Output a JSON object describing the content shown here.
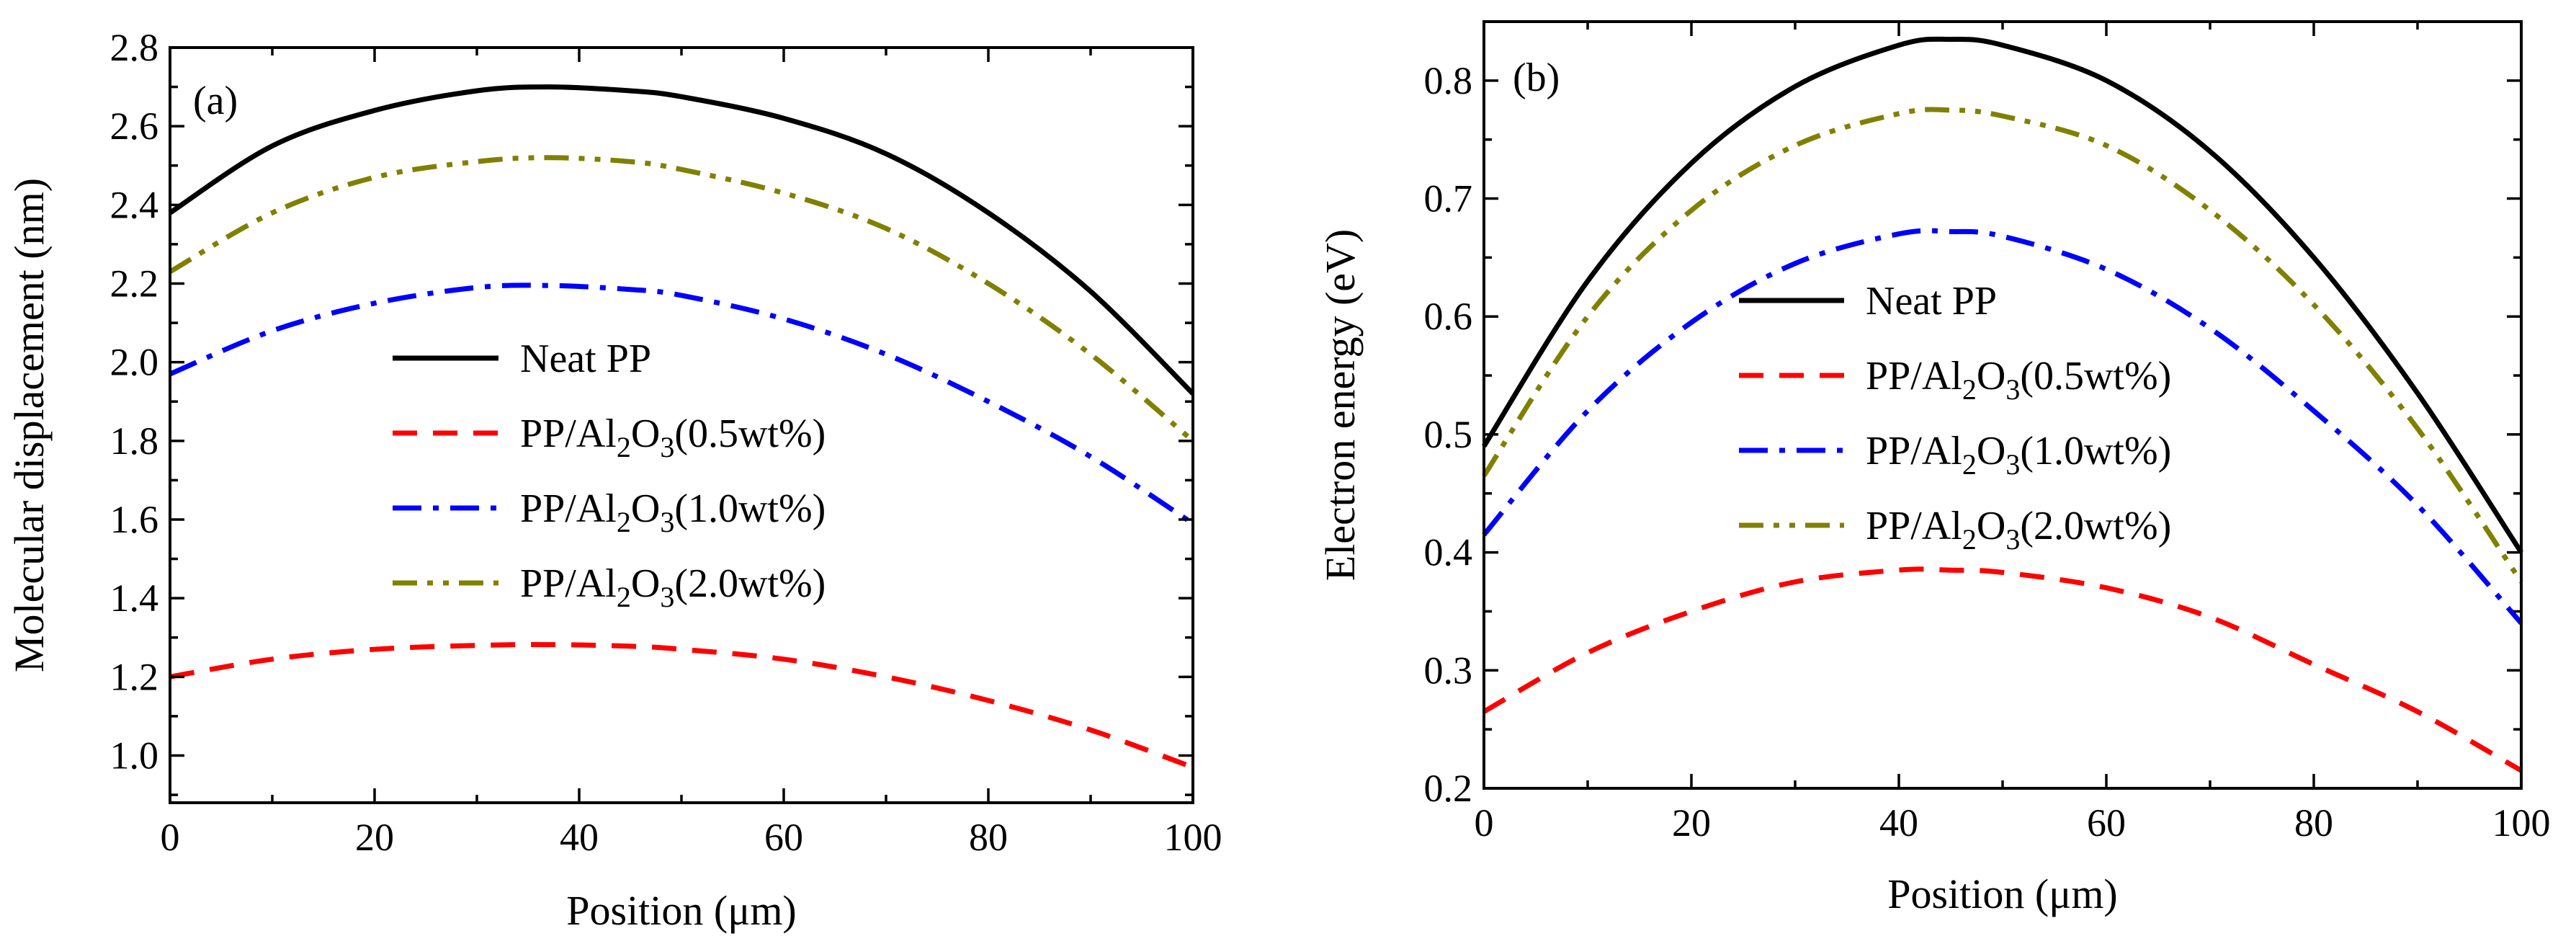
{
  "chart_data": [
    {
      "type": "line",
      "panel_label": "(a)",
      "xlabel": "Position (μm)",
      "ylabel": "Molecular displacement (nm)",
      "xlim": [
        0,
        100
      ],
      "ylim": [
        0.88,
        2.8
      ],
      "x_ticks": [
        0,
        20,
        40,
        60,
        80,
        100
      ],
      "y_ticks": [
        1.0,
        1.2,
        1.4,
        1.6,
        1.8,
        2.0,
        2.2,
        2.4,
        2.6,
        2.8
      ],
      "y_tick_labels": [
        "1.0",
        "1.2",
        "1.4",
        "1.6",
        "1.8",
        "2.0",
        "2.2",
        "2.4",
        "2.6",
        "2.8"
      ],
      "x_tick_labels": [
        "0",
        "20",
        "40",
        "60",
        "80",
        "100"
      ],
      "legend_placement": "center",
      "series": [
        {
          "name": "Neat PP",
          "label_main": "Neat PP",
          "label_parts": [],
          "color": "#000000",
          "style": "solid",
          "x": [
            0,
            10,
            20,
            30,
            37,
            45,
            50,
            60,
            70,
            80,
            90,
            100
          ],
          "values": [
            2.38,
            2.55,
            2.64,
            2.69,
            2.7,
            2.69,
            2.675,
            2.62,
            2.53,
            2.38,
            2.18,
            1.92
          ]
        },
        {
          "name": "PP/Al2O3(0.5wt%)",
          "label_main": "PP/Al",
          "label_parts": [
            "2",
            "O",
            "3",
            "(0.5wt%)"
          ],
          "color": "#ff0000",
          "style": "dashed",
          "x": [
            0,
            10,
            20,
            30,
            37,
            45,
            50,
            60,
            70,
            80,
            90,
            100
          ],
          "values": [
            1.2,
            1.245,
            1.27,
            1.28,
            1.282,
            1.278,
            1.27,
            1.245,
            1.2,
            1.14,
            1.065,
            0.97
          ]
        },
        {
          "name": "PP/Al2O3(1.0wt%)",
          "label_main": "PP/Al",
          "label_parts": [
            "2",
            "O",
            "3",
            "(1.0wt%)"
          ],
          "color": "#0000ff",
          "style": "dashdot",
          "x": [
            0,
            10,
            20,
            30,
            37,
            45,
            50,
            60,
            70,
            80,
            90,
            100
          ],
          "values": [
            1.97,
            2.08,
            2.15,
            2.19,
            2.195,
            2.185,
            2.17,
            2.11,
            2.02,
            1.9,
            1.76,
            1.59
          ]
        },
        {
          "name": "PP/Al2O3(2.0wt%)",
          "label_main": "PP/Al",
          "label_parts": [
            "2",
            "O",
            "3",
            "(2.0wt%)"
          ],
          "color": "#808000",
          "style": "dashdotdot",
          "x": [
            0,
            10,
            20,
            30,
            37,
            45,
            50,
            60,
            70,
            80,
            90,
            100
          ],
          "values": [
            2.23,
            2.38,
            2.47,
            2.51,
            2.52,
            2.51,
            2.49,
            2.43,
            2.34,
            2.2,
            2.02,
            1.8
          ]
        }
      ]
    },
    {
      "type": "line",
      "panel_label": "(b)",
      "xlabel": "Position (μm)",
      "ylabel": "Electron energy (eV)",
      "xlim": [
        0,
        100
      ],
      "ylim": [
        0.2,
        0.85
      ],
      "x_ticks": [
        0,
        20,
        40,
        60,
        80,
        100
      ],
      "y_ticks": [
        0.2,
        0.3,
        0.4,
        0.5,
        0.6,
        0.7,
        0.8
      ],
      "y_tick_labels": [
        "0.2",
        "0.3",
        "0.4",
        "0.5",
        "0.6",
        "0.7",
        "0.8"
      ],
      "x_tick_labels": [
        "0",
        "20",
        "40",
        "60",
        "80",
        "100"
      ],
      "legend_placement": "center",
      "series": [
        {
          "name": "Neat PP",
          "label_main": "Neat PP",
          "label_parts": [],
          "color": "#000000",
          "style": "solid",
          "x": [
            0,
            10,
            20,
            30,
            40,
            45,
            50,
            60,
            70,
            80,
            90,
            100
          ],
          "values": [
            0.49,
            0.63,
            0.73,
            0.795,
            0.83,
            0.835,
            0.83,
            0.8,
            0.74,
            0.65,
            0.535,
            0.4
          ]
        },
        {
          "name": "PP/Al2O3(0.5wt%)",
          "label_main": "PP/Al",
          "label_parts": [
            "2",
            "O",
            "3",
            "(0.5wt%)"
          ],
          "color": "#ff0000",
          "style": "dashed",
          "x": [
            0,
            10,
            20,
            30,
            40,
            45,
            50,
            60,
            70,
            80,
            90,
            100
          ],
          "values": [
            0.265,
            0.315,
            0.35,
            0.375,
            0.385,
            0.385,
            0.383,
            0.37,
            0.345,
            0.305,
            0.265,
            0.215
          ]
        },
        {
          "name": "PP/Al2O3(1.0wt%)",
          "label_main": "PP/Al",
          "label_parts": [
            "2",
            "O",
            "3",
            "(1.0wt%)"
          ],
          "color": "#0000ff",
          "style": "dashdot",
          "x": [
            0,
            10,
            20,
            30,
            40,
            45,
            50,
            60,
            70,
            80,
            90,
            100
          ],
          "values": [
            0.415,
            0.52,
            0.595,
            0.645,
            0.67,
            0.672,
            0.668,
            0.64,
            0.59,
            0.52,
            0.44,
            0.34
          ]
        },
        {
          "name": "PP/Al2O3(2.0wt%)",
          "label_main": "PP/Al",
          "label_parts": [
            "2",
            "O",
            "3",
            "(2.0wt%)"
          ],
          "color": "#808000",
          "style": "dashdotdot",
          "x": [
            0,
            10,
            20,
            30,
            40,
            45,
            50,
            60,
            70,
            80,
            90,
            100
          ],
          "values": [
            0.465,
            0.6,
            0.69,
            0.745,
            0.772,
            0.775,
            0.77,
            0.745,
            0.69,
            0.61,
            0.505,
            0.375
          ]
        }
      ]
    }
  ]
}
